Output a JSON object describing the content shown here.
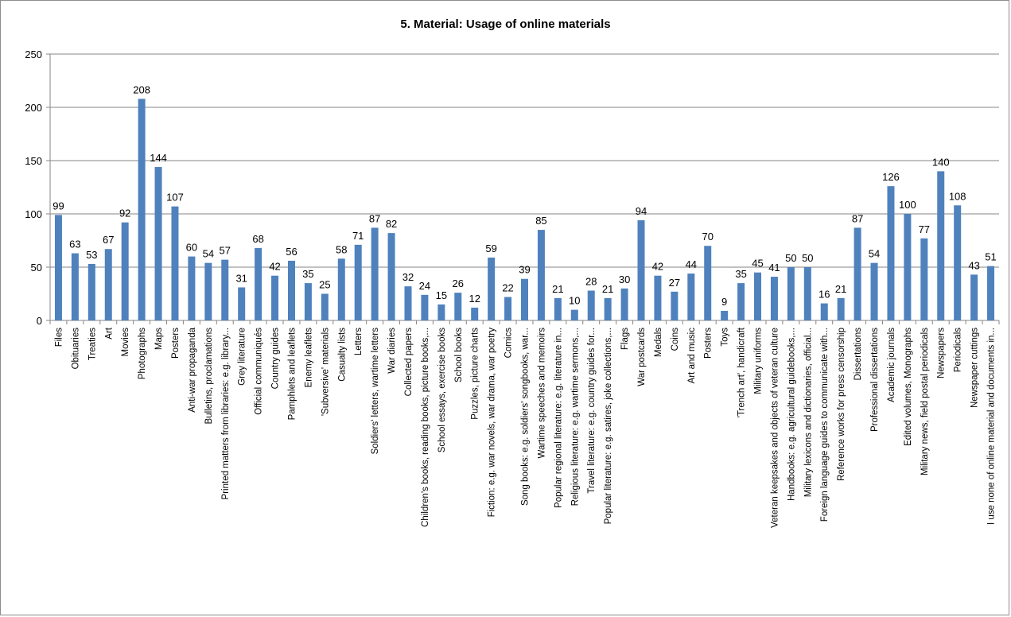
{
  "chart_data": {
    "type": "bar",
    "title": "5. Material: Usage of online materials",
    "xlabel": "",
    "ylabel": "",
    "ylim": [
      0,
      250
    ],
    "yticks": [
      0,
      50,
      100,
      150,
      200,
      250
    ],
    "grid": true,
    "legend": "none",
    "bar_color": "#4f81bd",
    "gridline_color": "#868686",
    "categories": [
      "Files",
      "Obituaries",
      "Treaties",
      "Art",
      "Movies",
      "Photographs",
      "Maps",
      "Posters",
      "Anti-war propaganda",
      "Bulletins, proclamations",
      "Printed matters from libraries: e.g. library...",
      "Grey literature",
      "Official communiqués",
      "Country guides",
      "Pamphlets and leaflets",
      "Enemy leaflets",
      "'Subversive' materials",
      "Casualty lists",
      "Letters",
      "Soldiers' letters, wartime letters",
      "War diaries",
      "Collected papers",
      "Children's books, reading books, picture books,...",
      "School essays, exercise books",
      "School books",
      "Puzzles, picture charts",
      "Fiction: e.g. war novels, war drama, war poetry",
      "Comics",
      "Song books: e.g. soldiers' songbooks, war...",
      "Wartime speeches and memoirs",
      "Popular regional literature: e.g. literature in...",
      "Religious literature: e.g. wartime sermons,...",
      "Travel literature: e.g. country guides for...",
      "Popular literature: e.g. satires, joke collections,...",
      "Flags",
      "War postcards",
      "Medals",
      "Coins",
      "Art and music",
      "Posters",
      "Toys",
      "'Trench art', handicraft",
      "Military uniforms",
      "Veteran keepsakes and objects of veteran culture",
      "Handbooks: e.g. agricultural guidebooks,...",
      "Military lexicons and dictionaries, official...",
      "Foreign language guides to communicate with...",
      "Reference works for press censorship",
      "Dissertations",
      "Professional dissertations",
      "Academic journals",
      "Edited volumes, Monographs",
      "Military news, field postal periodicals",
      "Newspapers",
      "Periodicals",
      "Newspaper cuttings",
      "I use none of online material and documents in..."
    ],
    "values": [
      99,
      63,
      53,
      67,
      92,
      208,
      144,
      107,
      60,
      54,
      57,
      31,
      68,
      42,
      56,
      35,
      25,
      58,
      71,
      87,
      82,
      32,
      24,
      15,
      26,
      12,
      59,
      22,
      39,
      85,
      21,
      10,
      28,
      21,
      30,
      94,
      42,
      27,
      44,
      70,
      9,
      35,
      45,
      41,
      50,
      50,
      16,
      21,
      87,
      54,
      126,
      100,
      77,
      140,
      108,
      43,
      51
    ]
  }
}
